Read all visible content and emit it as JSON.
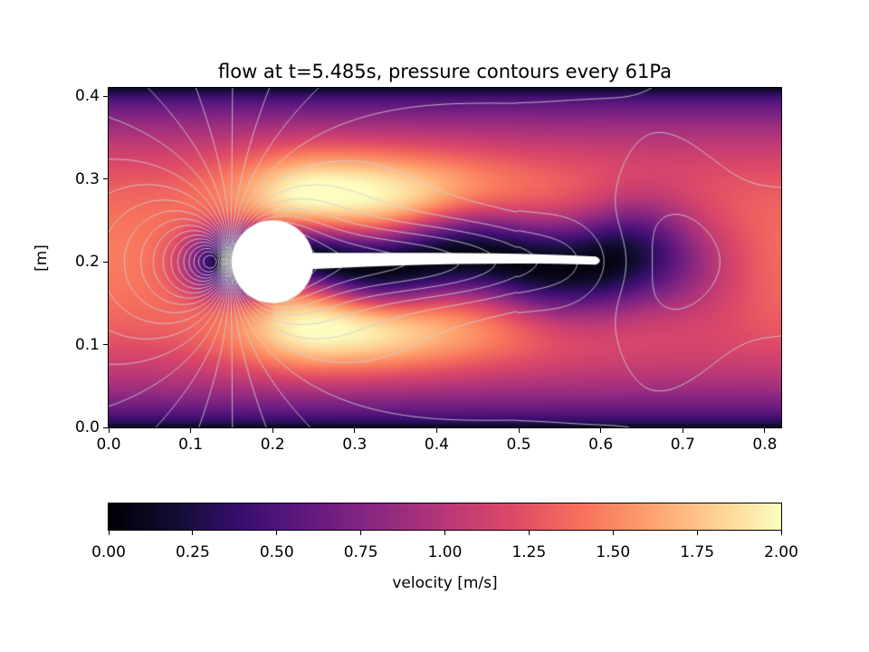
{
  "figure": {
    "background": "#ffffff"
  },
  "chart_data": {
    "type": "heatmap",
    "title": "flow at t=5.485s, pressure contours every 61Pa",
    "time_s": 5.485,
    "field": "velocity magnitude",
    "xlabel": "",
    "ylabel": "[m]",
    "x_range": [
      0.0,
      0.82
    ],
    "y_range": [
      0.0,
      0.41
    ],
    "x_ticks": [
      0.0,
      0.1,
      0.2,
      0.3,
      0.4,
      0.5,
      0.6,
      0.7,
      0.8
    ],
    "x_tick_labels": [
      "0.0",
      "0.1",
      "0.2",
      "0.3",
      "0.4",
      "0.5",
      "0.6",
      "0.7",
      "0.8"
    ],
    "y_ticks": [
      0.0,
      0.1,
      0.2,
      0.3,
      0.4
    ],
    "y_tick_labels": [
      "0.0",
      "0.1",
      "0.2",
      "0.3",
      "0.4"
    ],
    "colormap": "magma",
    "colormap_stops": [
      [
        0.0,
        0,
        0,
        4
      ],
      [
        0.1,
        20,
        14,
        54
      ],
      [
        0.2,
        59,
        15,
        112
      ],
      [
        0.3,
        100,
        26,
        128
      ],
      [
        0.4,
        140,
        41,
        129
      ],
      [
        0.5,
        183,
        55,
        121
      ],
      [
        0.6,
        222,
        73,
        104
      ],
      [
        0.7,
        247,
        112,
        92
      ],
      [
        0.8,
        254,
        159,
        109
      ],
      [
        0.9,
        254,
        207,
        146
      ],
      [
        1.0,
        252,
        253,
        191
      ]
    ],
    "colorbar": {
      "label": "velocity [m/s]",
      "range": [
        0.0,
        2.0
      ],
      "ticks": [
        0.0,
        0.25,
        0.5,
        0.75,
        1.0,
        1.25,
        1.5,
        1.75,
        2.0
      ],
      "tick_labels": [
        "0.00",
        "0.25",
        "0.50",
        "0.75",
        "1.00",
        "1.25",
        "1.50",
        "1.75",
        "2.00"
      ]
    },
    "contours": {
      "quantity": "pressure",
      "interval_pa": 61,
      "color": "#d0d0d0"
    },
    "obstacle": {
      "shape": "cylinder with elastic flag",
      "cylinder_center": [
        0.2,
        0.2
      ],
      "cylinder_radius": 0.05,
      "flag_tip_x": 0.6,
      "flag_thickness": 0.02,
      "color": "#ffffff"
    }
  }
}
